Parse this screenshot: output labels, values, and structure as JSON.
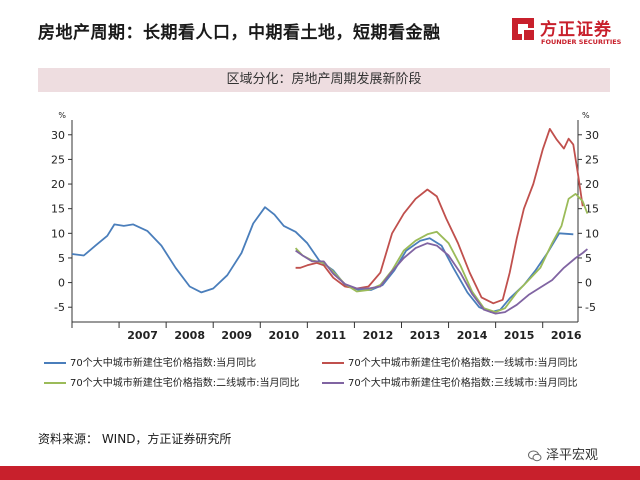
{
  "header": {
    "title": "房地产周期：长期看人口，中期看土地，短期看金融",
    "logo_name": "方正证券",
    "logo_en": "FOUNDER SECURITIES"
  },
  "subtitle": "区域分化：房地产周期发展新阶段",
  "source": "资料来源：  WIND，方正证券研究所",
  "wechat": "泽平宏观",
  "colors": {
    "brand": "#c8202c",
    "subtitle_bg": "#eedde0",
    "series_blue": "#4a7ebb",
    "series_red": "#c0504d",
    "series_green": "#9bbb59",
    "series_purple": "#8064a2"
  },
  "chart_data": {
    "type": "line",
    "title": "区域分化：房地产周期发展新阶段",
    "xlabel": "",
    "ylabel_left": "%",
    "ylabel_right": "%",
    "xlim": [
      2006.0,
      2016.75
    ],
    "ylim": [
      -8,
      33
    ],
    "x_ticks": [
      "2007",
      "2008",
      "2009",
      "2010",
      "2011",
      "2012",
      "2013",
      "2014",
      "2015",
      "2016"
    ],
    "y_ticks": [
      "-5",
      "0",
      "5",
      "10",
      "15",
      "20",
      "25",
      "30"
    ],
    "series": [
      {
        "name": "70个大中城市新建住宅价格指数:当月同比",
        "color": "#4a7ebb",
        "points": [
          [
            2006.0,
            5.8
          ],
          [
            2006.25,
            5.5
          ],
          [
            2006.5,
            7.5
          ],
          [
            2006.75,
            9.5
          ],
          [
            2006.9,
            11.8
          ],
          [
            2007.1,
            11.5
          ],
          [
            2007.3,
            11.8
          ],
          [
            2007.6,
            10.5
          ],
          [
            2007.9,
            7.5
          ],
          [
            2008.2,
            3
          ],
          [
            2008.5,
            -0.8
          ],
          [
            2008.75,
            -2.0
          ],
          [
            2009.0,
            -1.2
          ],
          [
            2009.3,
            1.5
          ],
          [
            2009.6,
            6
          ],
          [
            2009.85,
            12
          ],
          [
            2010.1,
            15.3
          ],
          [
            2010.3,
            13.8
          ],
          [
            2010.5,
            11.5
          ],
          [
            2010.75,
            10.3
          ],
          [
            2011.0,
            8
          ],
          [
            2011.25,
            4.5
          ],
          [
            2011.55,
            2.5
          ],
          [
            2011.8,
            -0.5
          ],
          [
            2012.1,
            -1.5
          ],
          [
            2012.35,
            -1.5
          ],
          [
            2012.6,
            -0.5
          ],
          [
            2012.85,
            2.5
          ],
          [
            2013.1,
            6.5
          ],
          [
            2013.4,
            8.5
          ],
          [
            2013.6,
            9
          ],
          [
            2013.85,
            7.5
          ],
          [
            2014.1,
            3
          ],
          [
            2014.4,
            -2
          ],
          [
            2014.65,
            -5
          ],
          [
            2014.9,
            -6
          ],
          [
            2015.1,
            -5.5
          ],
          [
            2015.3,
            -3.2
          ],
          [
            2015.6,
            -0.5
          ],
          [
            2015.85,
            2.5
          ],
          [
            2016.1,
            6
          ],
          [
            2016.35,
            10
          ],
          [
            2016.65,
            9.8
          ]
        ]
      },
      {
        "name": "70个大中城市新建住宅价格指数:一线城市:当月同比",
        "color": "#c0504d",
        "points": [
          [
            2010.75,
            3.0
          ],
          [
            2010.85,
            3.0
          ],
          [
            2011.0,
            3.5
          ],
          [
            2011.2,
            4.0
          ],
          [
            2011.35,
            3.5
          ],
          [
            2011.55,
            1.0
          ],
          [
            2011.8,
            -0.8
          ],
          [
            2012.05,
            -1.2
          ],
          [
            2012.3,
            -0.8
          ],
          [
            2012.55,
            2.0
          ],
          [
            2012.8,
            10
          ],
          [
            2013.05,
            14
          ],
          [
            2013.3,
            17
          ],
          [
            2013.55,
            18.9
          ],
          [
            2013.75,
            17.5
          ],
          [
            2013.95,
            13
          ],
          [
            2014.2,
            8
          ],
          [
            2014.45,
            2
          ],
          [
            2014.7,
            -3
          ],
          [
            2014.95,
            -4.2
          ],
          [
            2015.15,
            -3.5
          ],
          [
            2015.3,
            2
          ],
          [
            2015.45,
            9
          ],
          [
            2015.6,
            15
          ],
          [
            2015.8,
            20
          ],
          [
            2016.0,
            27
          ],
          [
            2016.15,
            31.2
          ],
          [
            2016.3,
            29
          ],
          [
            2016.45,
            27.2
          ],
          [
            2016.55,
            29.2
          ],
          [
            2016.65,
            28
          ],
          [
            2016.75,
            22
          ],
          [
            2016.85,
            15.5
          ]
        ]
      },
      {
        "name": "70个大中城市新建住宅价格指数:二线城市:当月同比",
        "color": "#9bbb59",
        "points": [
          [
            2010.75,
            7.0
          ],
          [
            2010.9,
            5.5
          ],
          [
            2011.1,
            4.5
          ],
          [
            2011.35,
            4.0
          ],
          [
            2011.55,
            2.2
          ],
          [
            2011.8,
            -0.3
          ],
          [
            2012.05,
            -1.8
          ],
          [
            2012.3,
            -1.5
          ],
          [
            2012.55,
            -0.5
          ],
          [
            2012.8,
            2.5
          ],
          [
            2013.05,
            6.5
          ],
          [
            2013.3,
            8.5
          ],
          [
            2013.55,
            9.8
          ],
          [
            2013.75,
            10.3
          ],
          [
            2014.0,
            8
          ],
          [
            2014.25,
            3.5
          ],
          [
            2014.5,
            -1.8
          ],
          [
            2014.75,
            -5.2
          ],
          [
            2015.0,
            -6
          ],
          [
            2015.2,
            -5.2
          ],
          [
            2015.45,
            -2
          ],
          [
            2015.7,
            0.5
          ],
          [
            2015.95,
            3
          ],
          [
            2016.2,
            8
          ],
          [
            2016.4,
            11.5
          ],
          [
            2016.55,
            17
          ],
          [
            2016.7,
            18
          ],
          [
            2016.85,
            16.5
          ],
          [
            2016.95,
            14
          ]
        ]
      },
      {
        "name": "70个大中城市新建住宅价格指数:三线城市:当月同比",
        "color": "#8064a2",
        "points": [
          [
            2010.75,
            6.5
          ],
          [
            2010.9,
            5.5
          ],
          [
            2011.1,
            4.3
          ],
          [
            2011.35,
            4.3
          ],
          [
            2011.55,
            1.8
          ],
          [
            2011.8,
            -0.3
          ],
          [
            2012.05,
            -1.2
          ],
          [
            2012.3,
            -1.2
          ],
          [
            2012.55,
            -0.8
          ],
          [
            2012.8,
            2.3
          ],
          [
            2013.05,
            5.0
          ],
          [
            2013.3,
            7.0
          ],
          [
            2013.55,
            8.0
          ],
          [
            2013.75,
            7.5
          ],
          [
            2014.0,
            5.5
          ],
          [
            2014.25,
            2.0
          ],
          [
            2014.5,
            -2.3
          ],
          [
            2014.75,
            -5.5
          ],
          [
            2015.0,
            -6.3
          ],
          [
            2015.2,
            -6.0
          ],
          [
            2015.45,
            -4.5
          ],
          [
            2015.7,
            -2.5
          ],
          [
            2015.95,
            -1.0
          ],
          [
            2016.2,
            0.5
          ],
          [
            2016.45,
            3.0
          ],
          [
            2016.7,
            5.0
          ],
          [
            2016.85,
            6.0
          ],
          [
            2016.95,
            6.8
          ]
        ]
      }
    ],
    "legend": [
      "70个大中城市新建住宅价格指数:当月同比",
      "70个大中城市新建住宅价格指数:一线城市:当月同比",
      "70个大中城市新建住宅价格指数:二线城市:当月同比",
      "70个大中城市新建住宅价格指数:三线城市:当月同比"
    ],
    "legend_position": "bottom"
  }
}
